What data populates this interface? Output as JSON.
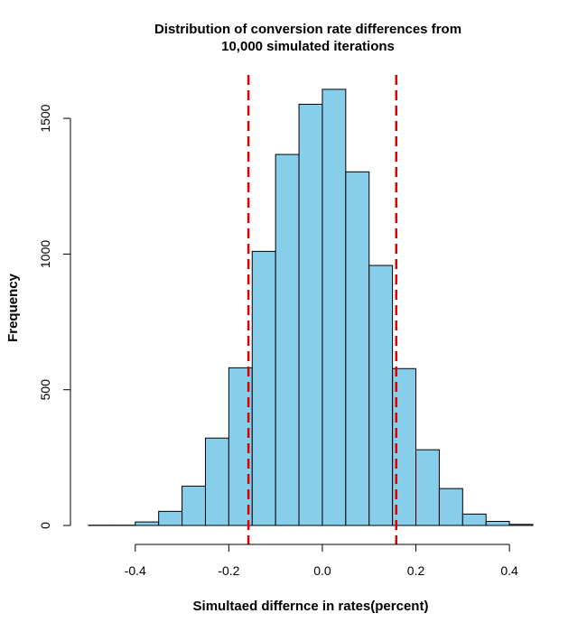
{
  "chart_data": {
    "type": "bar",
    "subtype": "histogram",
    "title_lines": [
      "Distribution of conversion rate differences from",
      "10,000 simulated iterations"
    ],
    "xlabel": "Simultaed differnce in rates(percent)",
    "ylabel": "Frequency",
    "bin_edges": [
      -0.5,
      -0.45,
      -0.4,
      -0.35,
      -0.3,
      -0.25,
      -0.2,
      -0.15,
      -0.1,
      -0.05,
      0.0,
      0.05,
      0.1,
      0.15,
      0.2,
      0.25,
      0.3,
      0.35,
      0.4,
      0.45
    ],
    "counts": [
      1,
      1,
      13,
      52,
      145,
      322,
      581,
      1010,
      1367,
      1552,
      1607,
      1303,
      958,
      578,
      279,
      136,
      42,
      15,
      4
    ],
    "xlim": [
      -0.5,
      0.45
    ],
    "ylim": [
      0,
      1660
    ],
    "x_ticks": [
      -0.4,
      -0.2,
      0.0,
      0.2,
      0.4
    ],
    "x_tick_labels": [
      "-0.4",
      "-0.2",
      "0.0",
      "0.2",
      "0.4"
    ],
    "y_ticks": [
      0,
      500,
      1000,
      1500
    ],
    "y_tick_labels": [
      "0",
      "500",
      "1000",
      "1500"
    ],
    "reference_lines": [
      -0.158,
      0.158
    ],
    "colors": {
      "bar_fill": "#87ceeb",
      "bar_stroke": "#000000",
      "reference_line": "#dd0000"
    },
    "grid": false,
    "legend": "none"
  }
}
